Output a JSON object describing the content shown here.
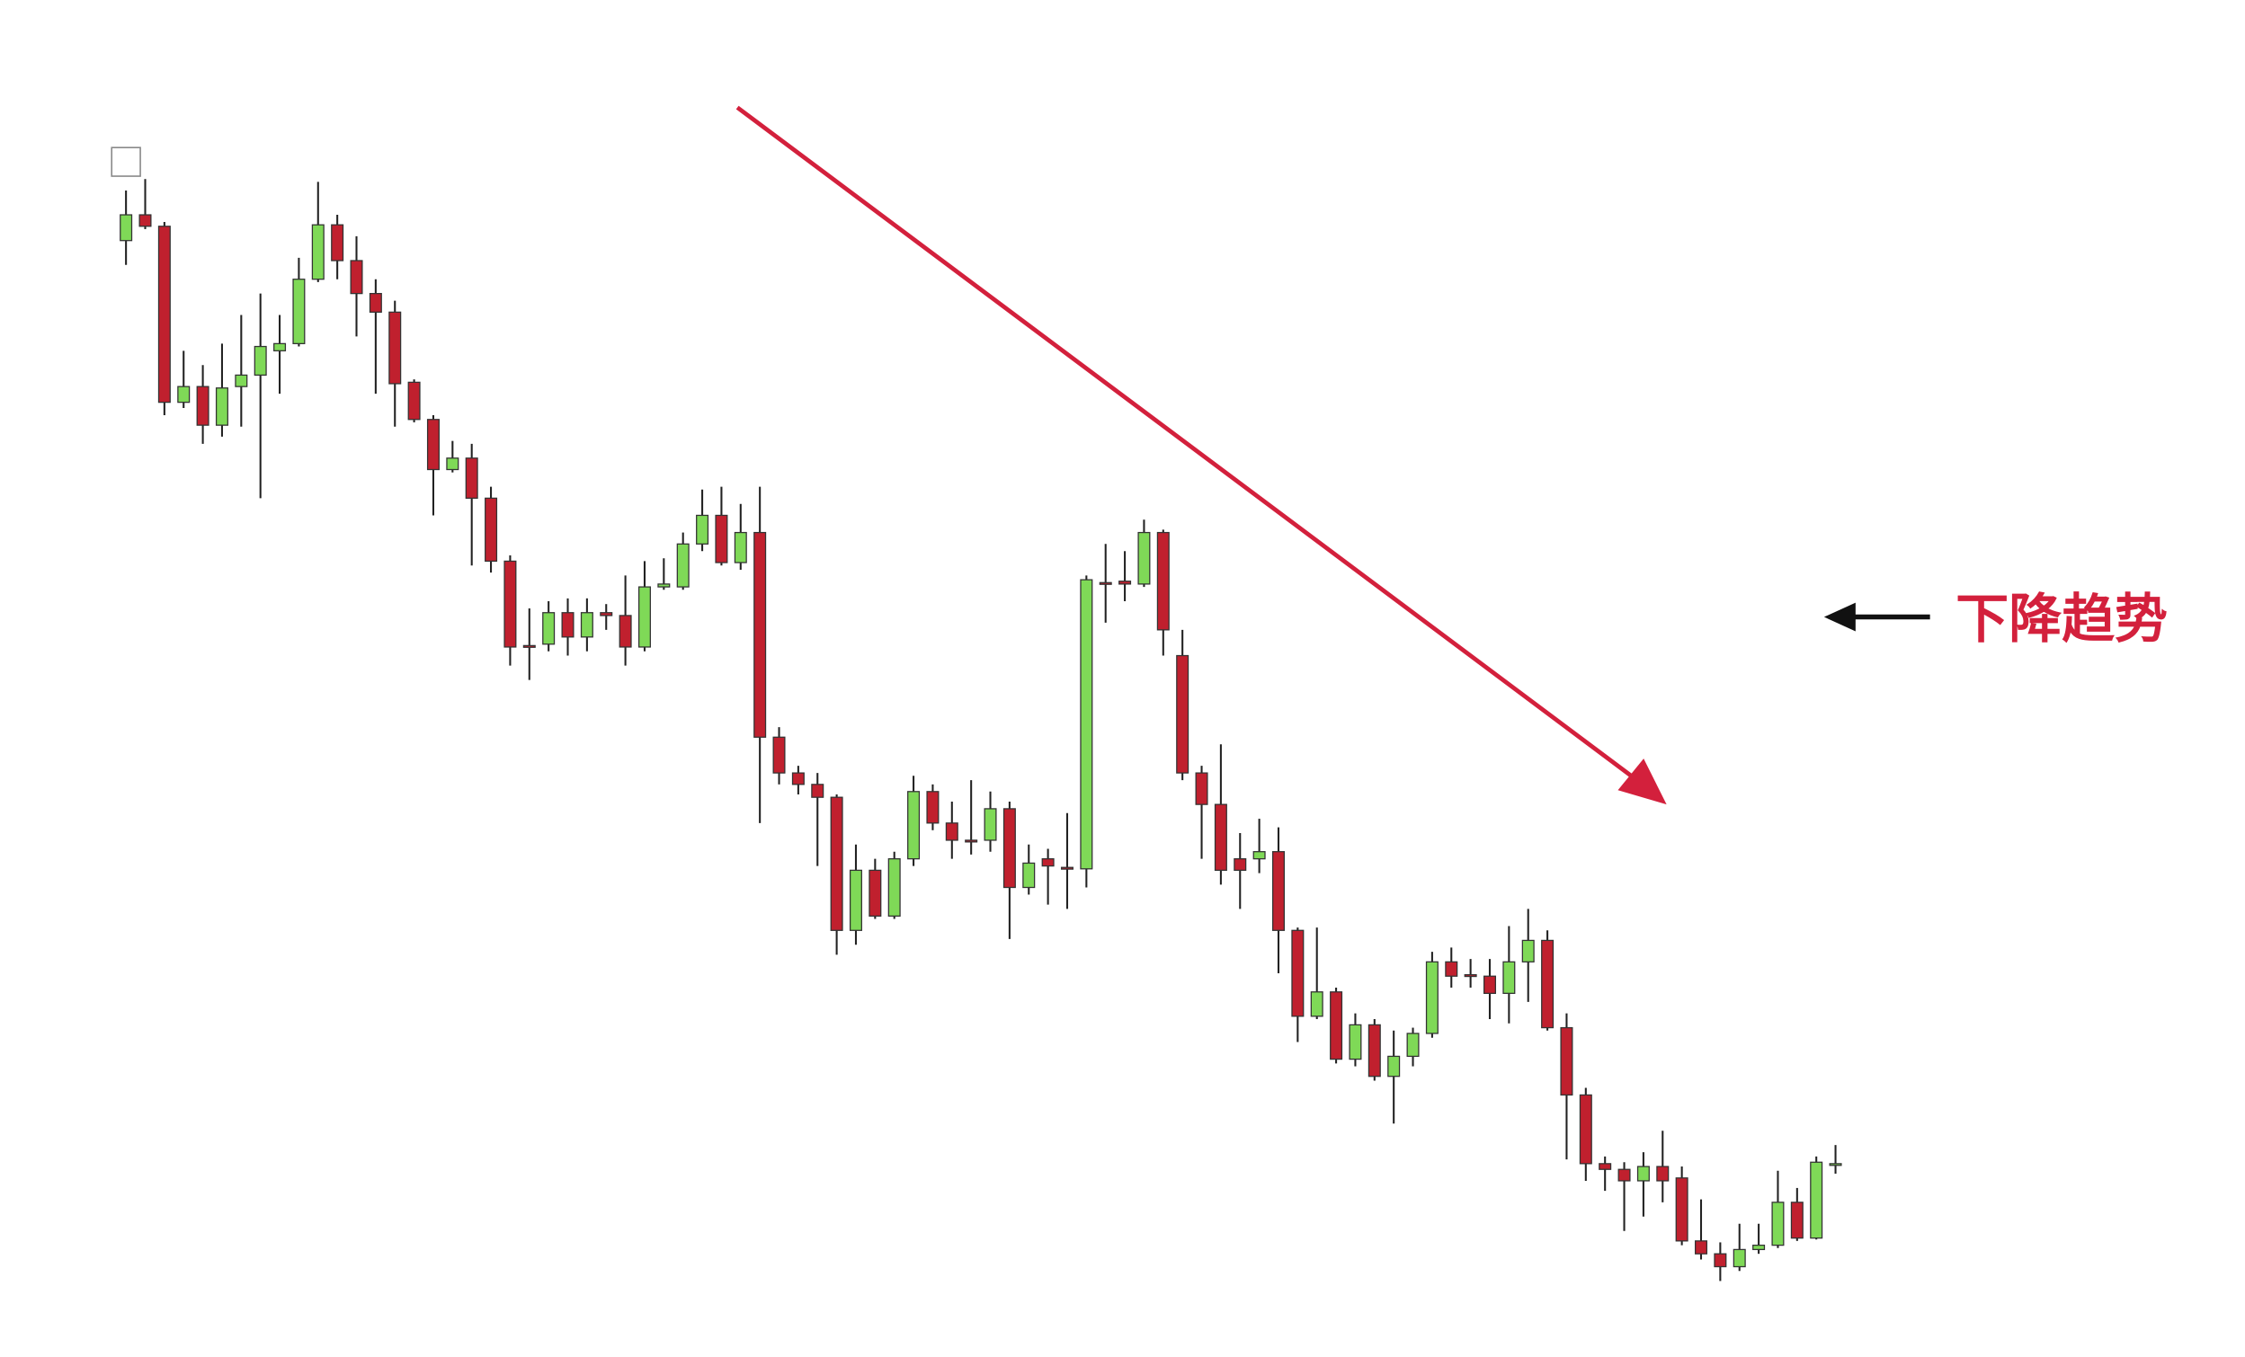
{
  "chart_data": {
    "type": "candlestick",
    "annotation": "下降趋势",
    "up_color": "#7fd957",
    "down_color": "#c0202e",
    "annotation_color": "#d3203c",
    "ylim": [
      50,
      900
    ],
    "open": [
      832,
      850,
      842,
      719,
      730,
      703,
      730,
      738,
      755,
      760,
      805,
      843,
      818,
      795,
      782,
      733,
      707,
      672,
      680,
      652,
      608,
      549,
      550,
      572,
      555,
      572,
      570,
      548,
      590,
      590,
      620,
      640,
      607,
      628,
      485,
      460,
      452,
      443,
      350,
      392,
      360,
      400,
      447,
      425,
      413,
      413,
      435,
      380,
      400,
      394,
      393,
      593,
      594,
      592,
      628,
      542,
      460,
      438,
      400,
      400,
      405,
      350,
      290,
      307,
      260,
      284,
      248,
      262,
      278,
      328,
      319,
      318,
      306,
      328,
      343,
      282,
      235,
      187,
      183,
      175,
      185,
      177,
      133,
      124,
      115,
      127,
      130,
      160,
      135,
      186
    ],
    "high": [
      867,
      875,
      845,
      755,
      745,
      760,
      780,
      795,
      780,
      820,
      873,
      850,
      835,
      805,
      790,
      735,
      710,
      692,
      690,
      660,
      612,
      575,
      580,
      582,
      582,
      578,
      598,
      608,
      610,
      628,
      658,
      660,
      648,
      660,
      492,
      465,
      460,
      445,
      410,
      400,
      405,
      458,
      452,
      440,
      455,
      447,
      440,
      410,
      407,
      432,
      598,
      620,
      615,
      637,
      630,
      560,
      465,
      480,
      418,
      428,
      422,
      352,
      352,
      310,
      292,
      288,
      280,
      282,
      335,
      338,
      330,
      330,
      353,
      365,
      350,
      292,
      240,
      192,
      188,
      195,
      210,
      185,
      162,
      132,
      145,
      145,
      182,
      170,
      192,
      200
    ],
    "low": [
      815,
      840,
      710,
      715,
      690,
      695,
      702,
      652,
      725,
      758,
      803,
      805,
      765,
      725,
      702,
      705,
      640,
      670,
      605,
      600,
      535,
      525,
      545,
      542,
      545,
      560,
      535,
      545,
      588,
      588,
      615,
      605,
      602,
      425,
      452,
      445,
      395,
      333,
      340,
      358,
      358,
      395,
      420,
      400,
      403,
      405,
      344,
      375,
      368,
      365,
      380,
      565,
      580,
      590,
      542,
      455,
      400,
      382,
      365,
      390,
      320,
      272,
      288,
      257,
      255,
      245,
      215,
      255,
      275,
      310,
      310,
      288,
      285,
      300,
      280,
      190,
      175,
      168,
      140,
      150,
      160,
      130,
      120,
      105,
      112,
      124,
      128,
      133,
      134,
      180
    ],
    "close": [
      850,
      842,
      719,
      730,
      703,
      729,
      738,
      758,
      760,
      805,
      843,
      818,
      795,
      782,
      732,
      707,
      672,
      680,
      652,
      608,
      548,
      548,
      572,
      555,
      572,
      570,
      548,
      590,
      592,
      620,
      640,
      607,
      628,
      485,
      460,
      452,
      443,
      350,
      392,
      360,
      400,
      447,
      425,
      413,
      412,
      435,
      380,
      397,
      395,
      393,
      595,
      592,
      592,
      628,
      560,
      460,
      438,
      392,
      392,
      405,
      350,
      290,
      307,
      260,
      284,
      248,
      262,
      278,
      328,
      318,
      318,
      306,
      328,
      343,
      282,
      235,
      187,
      183,
      175,
      185,
      175,
      133,
      124,
      115,
      127,
      130,
      160,
      135,
      188,
      187
    ]
  }
}
